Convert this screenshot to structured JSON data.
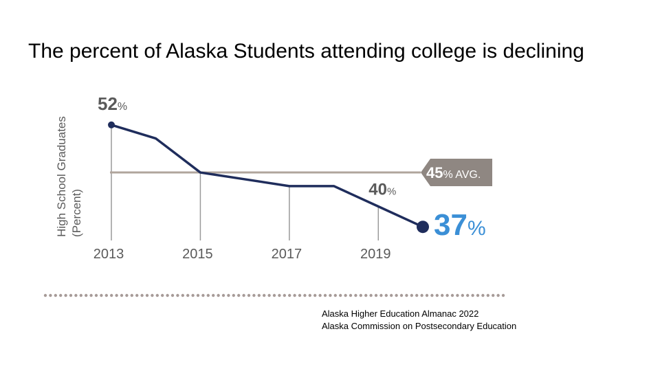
{
  "slide": {
    "title": "The percent of Alaska Students attending college is declining"
  },
  "source": {
    "line1": "Alaska Higher Education Almanac 2022",
    "line2": "Alaska Commission on Postsecondary Education"
  },
  "chart_data": {
    "type": "line",
    "ylabel_line1": "High School Graduates",
    "ylabel_line2": "(Percent)",
    "x": [
      2013,
      2014,
      2015,
      2016,
      2017,
      2018,
      2019,
      2020
    ],
    "xticks": [
      "2013",
      "2015",
      "2017",
      "2019"
    ],
    "series": [
      {
        "values": [
          52,
          50,
          45,
          44,
          43,
          43,
          40,
          37
        ]
      }
    ],
    "ylim": [
      35,
      54
    ],
    "average": {
      "value": 45,
      "number": "45",
      "unit": "% AVG."
    },
    "annotations": [
      {
        "x": 2013,
        "number": "52",
        "unit": "%"
      },
      {
        "x": 2019,
        "number": "40",
        "unit": "%"
      },
      {
        "x": 2020,
        "number": "37",
        "unit": "%"
      }
    ],
    "grid": false,
    "colors": {
      "line": "#1f2d5c",
      "avg_line": "#b0a59c",
      "avg_badge": "#8f8782",
      "tick": "#9a9a9a",
      "label": "#5a5a5a",
      "accent": "#3b8fd6",
      "dots": "#a79b98"
    }
  }
}
